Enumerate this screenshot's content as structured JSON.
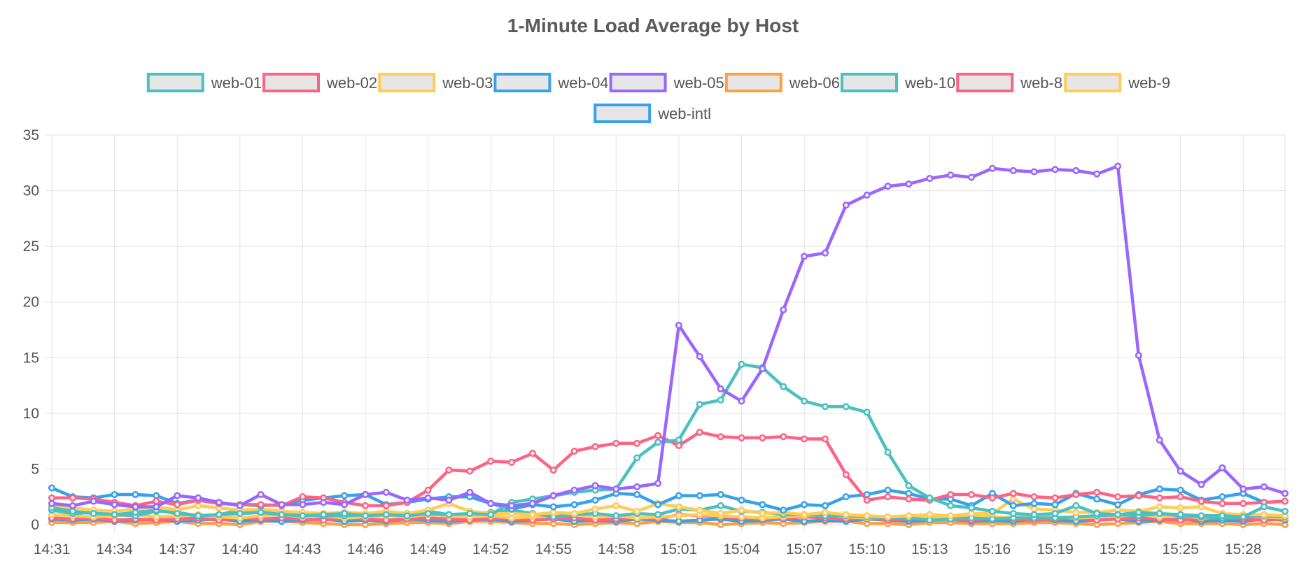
{
  "chart_data": {
    "type": "line",
    "title": "1-Minute Load Average by Host",
    "xlabel": "",
    "ylabel": "",
    "ylim": [
      0,
      35
    ],
    "y_ticks": [
      0,
      5,
      10,
      15,
      20,
      25,
      30,
      35
    ],
    "grid": true,
    "legend_position": "top",
    "x": [
      "14:31",
      "14:32",
      "14:33",
      "14:34",
      "14:35",
      "14:36",
      "14:37",
      "14:38",
      "14:39",
      "14:40",
      "14:41",
      "14:42",
      "14:43",
      "14:44",
      "14:45",
      "14:46",
      "14:47",
      "14:48",
      "14:49",
      "14:50",
      "14:51",
      "14:52",
      "14:53",
      "14:54",
      "14:55",
      "14:56",
      "14:57",
      "14:58",
      "14:59",
      "15:00",
      "15:01",
      "15:02",
      "15:03",
      "15:04",
      "15:05",
      "15:06",
      "15:07",
      "15:08",
      "15:09",
      "15:10",
      "15:11",
      "15:12",
      "15:13",
      "15:14",
      "15:15",
      "15:16",
      "15:17",
      "15:18",
      "15:19",
      "15:20",
      "15:21",
      "15:22",
      "15:23",
      "15:24",
      "15:25",
      "15:26",
      "15:27",
      "15:28",
      "15:29",
      "15:30"
    ],
    "x_tick_labels": [
      "14:31",
      "14:34",
      "14:37",
      "14:40",
      "14:43",
      "14:46",
      "14:49",
      "14:52",
      "14:55",
      "14:58",
      "15:01",
      "15:04",
      "15:07",
      "15:10",
      "15:13",
      "15:16",
      "15:19",
      "15:22",
      "15:25",
      "15:28"
    ],
    "series": [
      {
        "name": "web-01",
        "color": "#4bc0c0",
        "values": [
          1.5,
          1.2,
          1.0,
          0.9,
          1.1,
          1.3,
          1.0,
          0.8,
          0.9,
          1.0,
          1.1,
          0.9,
          0.8,
          0.9,
          1.0,
          0.8,
          0.9,
          0.8,
          1.0,
          0.9,
          1.0,
          0.9,
          2.0,
          2.3,
          2.6,
          2.9,
          3.1,
          3.2,
          6.0,
          7.4,
          7.6,
          10.8,
          11.2,
          14.4,
          14.1,
          12.4,
          11.1,
          10.6,
          10.6,
          10.1,
          6.5,
          3.5,
          2.4,
          1.7,
          1.5,
          1.2,
          1.0,
          0.9,
          1.0,
          1.7,
          1.0,
          0.9,
          1.1,
          1.0,
          0.9,
          0.8,
          0.8,
          0.7,
          1.6,
          1.2
        ]
      },
      {
        "name": "web-02",
        "color": "#ff6384",
        "values": [
          2.4,
          2.4,
          2.3,
          2.0,
          1.7,
          2.1,
          1.8,
          2.2,
          1.9,
          1.8,
          1.8,
          1.7,
          2.5,
          2.4,
          2.0,
          1.7,
          1.7,
          2.0,
          3.1,
          4.9,
          4.8,
          5.7,
          5.6,
          6.4,
          4.9,
          6.6,
          7.0,
          7.3,
          7.3,
          8.0,
          7.1,
          8.3,
          7.9,
          7.8,
          7.8,
          7.9,
          7.7,
          7.7,
          4.5,
          2.2,
          2.5,
          2.3,
          2.2,
          2.7,
          2.7,
          2.4,
          2.8,
          2.5,
          2.4,
          2.7,
          2.9,
          2.5,
          2.6,
          2.4,
          2.5,
          2.1,
          1.9,
          1.9,
          2.0,
          2.1
        ]
      },
      {
        "name": "web-03",
        "color": "#ffcd56",
        "values": [
          1.7,
          1.5,
          1.3,
          1.2,
          1.4,
          1.6,
          1.3,
          1.7,
          1.5,
          1.3,
          1.4,
          1.2,
          1.1,
          1.0,
          1.1,
          1.0,
          1.2,
          1.0,
          1.3,
          1.9,
          1.2,
          1.0,
          1.0,
          0.9,
          1.1,
          1.0,
          1.4,
          1.7,
          1.2,
          1.9,
          1.6,
          1.3,
          1.0,
          1.3,
          1.0,
          1.1,
          0.9,
          1.1,
          0.9,
          0.8,
          0.7,
          0.8,
          0.9,
          0.8,
          1.0,
          1.0,
          2.3,
          1.4,
          1.3,
          1.1,
          1.1,
          1.3,
          1.2,
          1.6,
          1.5,
          1.6,
          1.0,
          0.9,
          0.9,
          0.8
        ]
      },
      {
        "name": "web-04",
        "color": "#36a2eb",
        "values": [
          3.3,
          2.5,
          2.4,
          2.7,
          2.7,
          2.6,
          1.9,
          2.2,
          1.9,
          1.8,
          1.7,
          1.8,
          2.2,
          2.4,
          2.6,
          2.7,
          1.8,
          2.0,
          2.3,
          2.5,
          2.5,
          1.9,
          1.4,
          1.8,
          1.6,
          1.8,
          2.2,
          2.8,
          2.7,
          1.8,
          2.6,
          2.6,
          2.7,
          2.2,
          1.8,
          1.3,
          1.8,
          1.7,
          2.5,
          2.7,
          3.1,
          2.8,
          2.3,
          2.3,
          1.7,
          2.8,
          1.7,
          1.9,
          1.8,
          2.8,
          2.3,
          1.8,
          2.7,
          3.2,
          3.1,
          2.2,
          2.5,
          2.8,
          2.0,
          2.1
        ]
      },
      {
        "name": "web-05",
        "color": "#9966ff",
        "values": [
          1.9,
          1.7,
          2.1,
          1.8,
          1.6,
          1.6,
          2.6,
          2.4,
          2.0,
          1.7,
          2.7,
          1.8,
          1.8,
          2.0,
          1.8,
          2.7,
          2.9,
          2.2,
          2.4,
          2.2,
          2.9,
          1.9,
          1.7,
          1.9,
          2.6,
          3.1,
          3.5,
          3.2,
          3.4,
          3.7,
          17.9,
          15.1,
          12.2,
          11.1,
          14.0,
          19.3,
          24.1,
          24.4,
          28.7,
          29.6,
          30.4,
          30.6,
          31.1,
          31.4,
          31.2,
          32.0,
          31.8,
          31.7,
          31.9,
          31.8,
          31.5,
          32.2,
          15.2,
          7.6,
          4.8,
          3.6,
          5.1,
          3.2,
          3.4,
          2.8
        ]
      },
      {
        "name": "web-06",
        "color": "#ff9f40",
        "values": [
          0.2,
          0.2,
          0.2,
          0.3,
          0.1,
          0.2,
          0.3,
          0.1,
          0.1,
          0.0,
          0.3,
          0.3,
          0.2,
          0.1,
          0.0,
          0.0,
          0.1,
          0.2,
          0.2,
          0.1,
          0.3,
          0.3,
          0.2,
          0.1,
          0.1,
          0.0,
          0.1,
          0.2,
          0.1,
          0.3,
          0.2,
          0.2,
          0.0,
          0.1,
          0.2,
          0.1,
          0.2,
          0.3,
          0.3,
          0.1,
          0.1,
          0.0,
          0.2,
          0.2,
          0.1,
          0.1,
          0.1,
          0.2,
          0.2,
          0.1,
          0.0,
          0.1,
          0.2,
          0.3,
          0.1,
          0.1,
          0.1,
          0.0,
          0.1,
          0.0
        ]
      },
      {
        "name": "web-10",
        "color": "#4bc0c0",
        "values": [
          1.3,
          1.0,
          1.1,
          0.9,
          0.8,
          1.2,
          1.1,
          0.8,
          0.9,
          1.3,
          1.2,
          1.1,
          0.9,
          0.8,
          0.8,
          0.9,
          0.9,
          1.0,
          1.2,
          0.9,
          1.0,
          1.1,
          1.3,
          1.0,
          0.7,
          0.9,
          1.0,
          0.8,
          1.0,
          0.9,
          1.4,
          1.3,
          1.7,
          1.2,
          1.1,
          0.9,
          0.9,
          0.8,
          0.8,
          0.7,
          0.6,
          0.6,
          0.4,
          0.5,
          0.6,
          0.5,
          0.6,
          0.6,
          0.6,
          0.7,
          0.8,
          0.9,
          0.8,
          1.0,
          0.8,
          0.7,
          0.6,
          0.7,
          0.8,
          0.7
        ]
      },
      {
        "name": "web-8",
        "color": "#ff6384",
        "values": [
          0.6,
          0.5,
          0.6,
          0.4,
          0.5,
          0.4,
          0.5,
          0.6,
          0.4,
          0.6,
          0.5,
          0.6,
          0.5,
          0.4,
          0.6,
          0.5,
          0.4,
          0.5,
          0.6,
          0.5,
          0.4,
          0.6,
          0.5,
          0.4,
          0.5,
          0.6,
          0.4,
          0.5,
          0.6,
          0.5,
          0.9,
          0.8,
          0.7,
          0.6,
          0.5,
          0.6,
          0.7,
          0.6,
          0.5,
          0.6,
          0.4,
          0.5,
          0.6,
          0.5,
          0.4,
          0.6,
          0.5,
          0.4,
          0.5,
          0.6,
          0.4,
          0.5,
          0.6,
          0.5,
          0.4,
          0.5,
          0.6,
          0.5,
          0.4,
          0.5
        ]
      },
      {
        "name": "web-9",
        "color": "#ffcd56",
        "values": [
          0.9,
          0.8,
          0.7,
          0.8,
          0.9,
          0.7,
          0.8,
          0.9,
          0.7,
          0.6,
          0.8,
          0.9,
          0.7,
          0.8,
          0.6,
          0.7,
          0.8,
          0.7,
          0.9,
          0.8,
          0.7,
          0.8,
          0.6,
          0.7,
          0.8,
          0.9,
          0.7,
          0.8,
          0.6,
          0.7,
          0.8,
          0.9,
          0.8,
          0.7,
          0.6,
          0.7,
          0.8,
          0.9,
          0.7,
          0.6,
          0.7,
          0.8,
          0.6,
          0.7,
          0.8,
          0.7,
          0.6,
          0.8,
          0.7,
          0.6,
          0.7,
          0.8,
          0.9,
          0.7,
          0.8,
          0.6,
          0.7,
          0.8,
          0.7,
          0.6
        ]
      },
      {
        "name": "web-intl",
        "color": "#36a2eb",
        "values": [
          0.5,
          0.4,
          0.5,
          0.3,
          0.4,
          0.5,
          0.3,
          0.4,
          0.5,
          0.3,
          0.4,
          0.3,
          0.4,
          0.5,
          0.3,
          0.4,
          0.3,
          0.5,
          0.4,
          0.3,
          0.4,
          0.5,
          0.3,
          0.4,
          0.5,
          0.3,
          0.4,
          0.3,
          0.5,
          0.4,
          0.3,
          0.4,
          0.5,
          0.3,
          0.4,
          0.5,
          0.3,
          0.4,
          0.3,
          0.5,
          0.4,
          0.3,
          0.4,
          0.5,
          0.3,
          0.4,
          0.3,
          0.5,
          0.4,
          0.3,
          0.4,
          0.5,
          0.3,
          0.4,
          0.5,
          0.3,
          0.4,
          0.3,
          0.5,
          0.4
        ]
      }
    ]
  }
}
